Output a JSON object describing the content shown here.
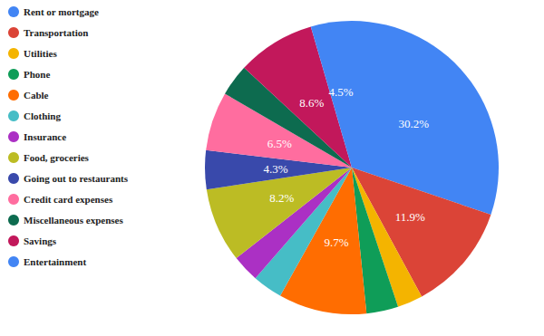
{
  "chart_data": {
    "type": "pie",
    "categories": [
      "Rent or mortgage",
      "Transportation",
      "Utilities",
      "Phone",
      "Cable",
      "Clothing",
      "Insurance",
      "Food, groceries",
      "Going out to restaurants",
      "Credit card expenses",
      "Miscellaneous expenses",
      "Savings",
      "Entertainment"
    ],
    "values": [
      30.2,
      11.9,
      2.8,
      3.5,
      9.7,
      3.3,
      3.0,
      8.2,
      4.3,
      6.5,
      3.5,
      8.6,
      4.5
    ],
    "value_labels": [
      "30.2%",
      "11.9%",
      null,
      null,
      "9.7%",
      null,
      null,
      "8.2%",
      "4.3%",
      "6.5%",
      null,
      "8.6%",
      "4.5%"
    ],
    "colors": [
      "#4285f4",
      "#db4437",
      "#f4b400",
      "#0f9d58",
      "#ff6d01",
      "#46bdc6",
      "#ab30c4",
      "#bcbc24",
      "#3949ab",
      "#ff6d9f",
      "#0d6b4f",
      "#c2185b",
      "#4285f4"
    ],
    "data_labels": true,
    "legend": "top-left"
  }
}
